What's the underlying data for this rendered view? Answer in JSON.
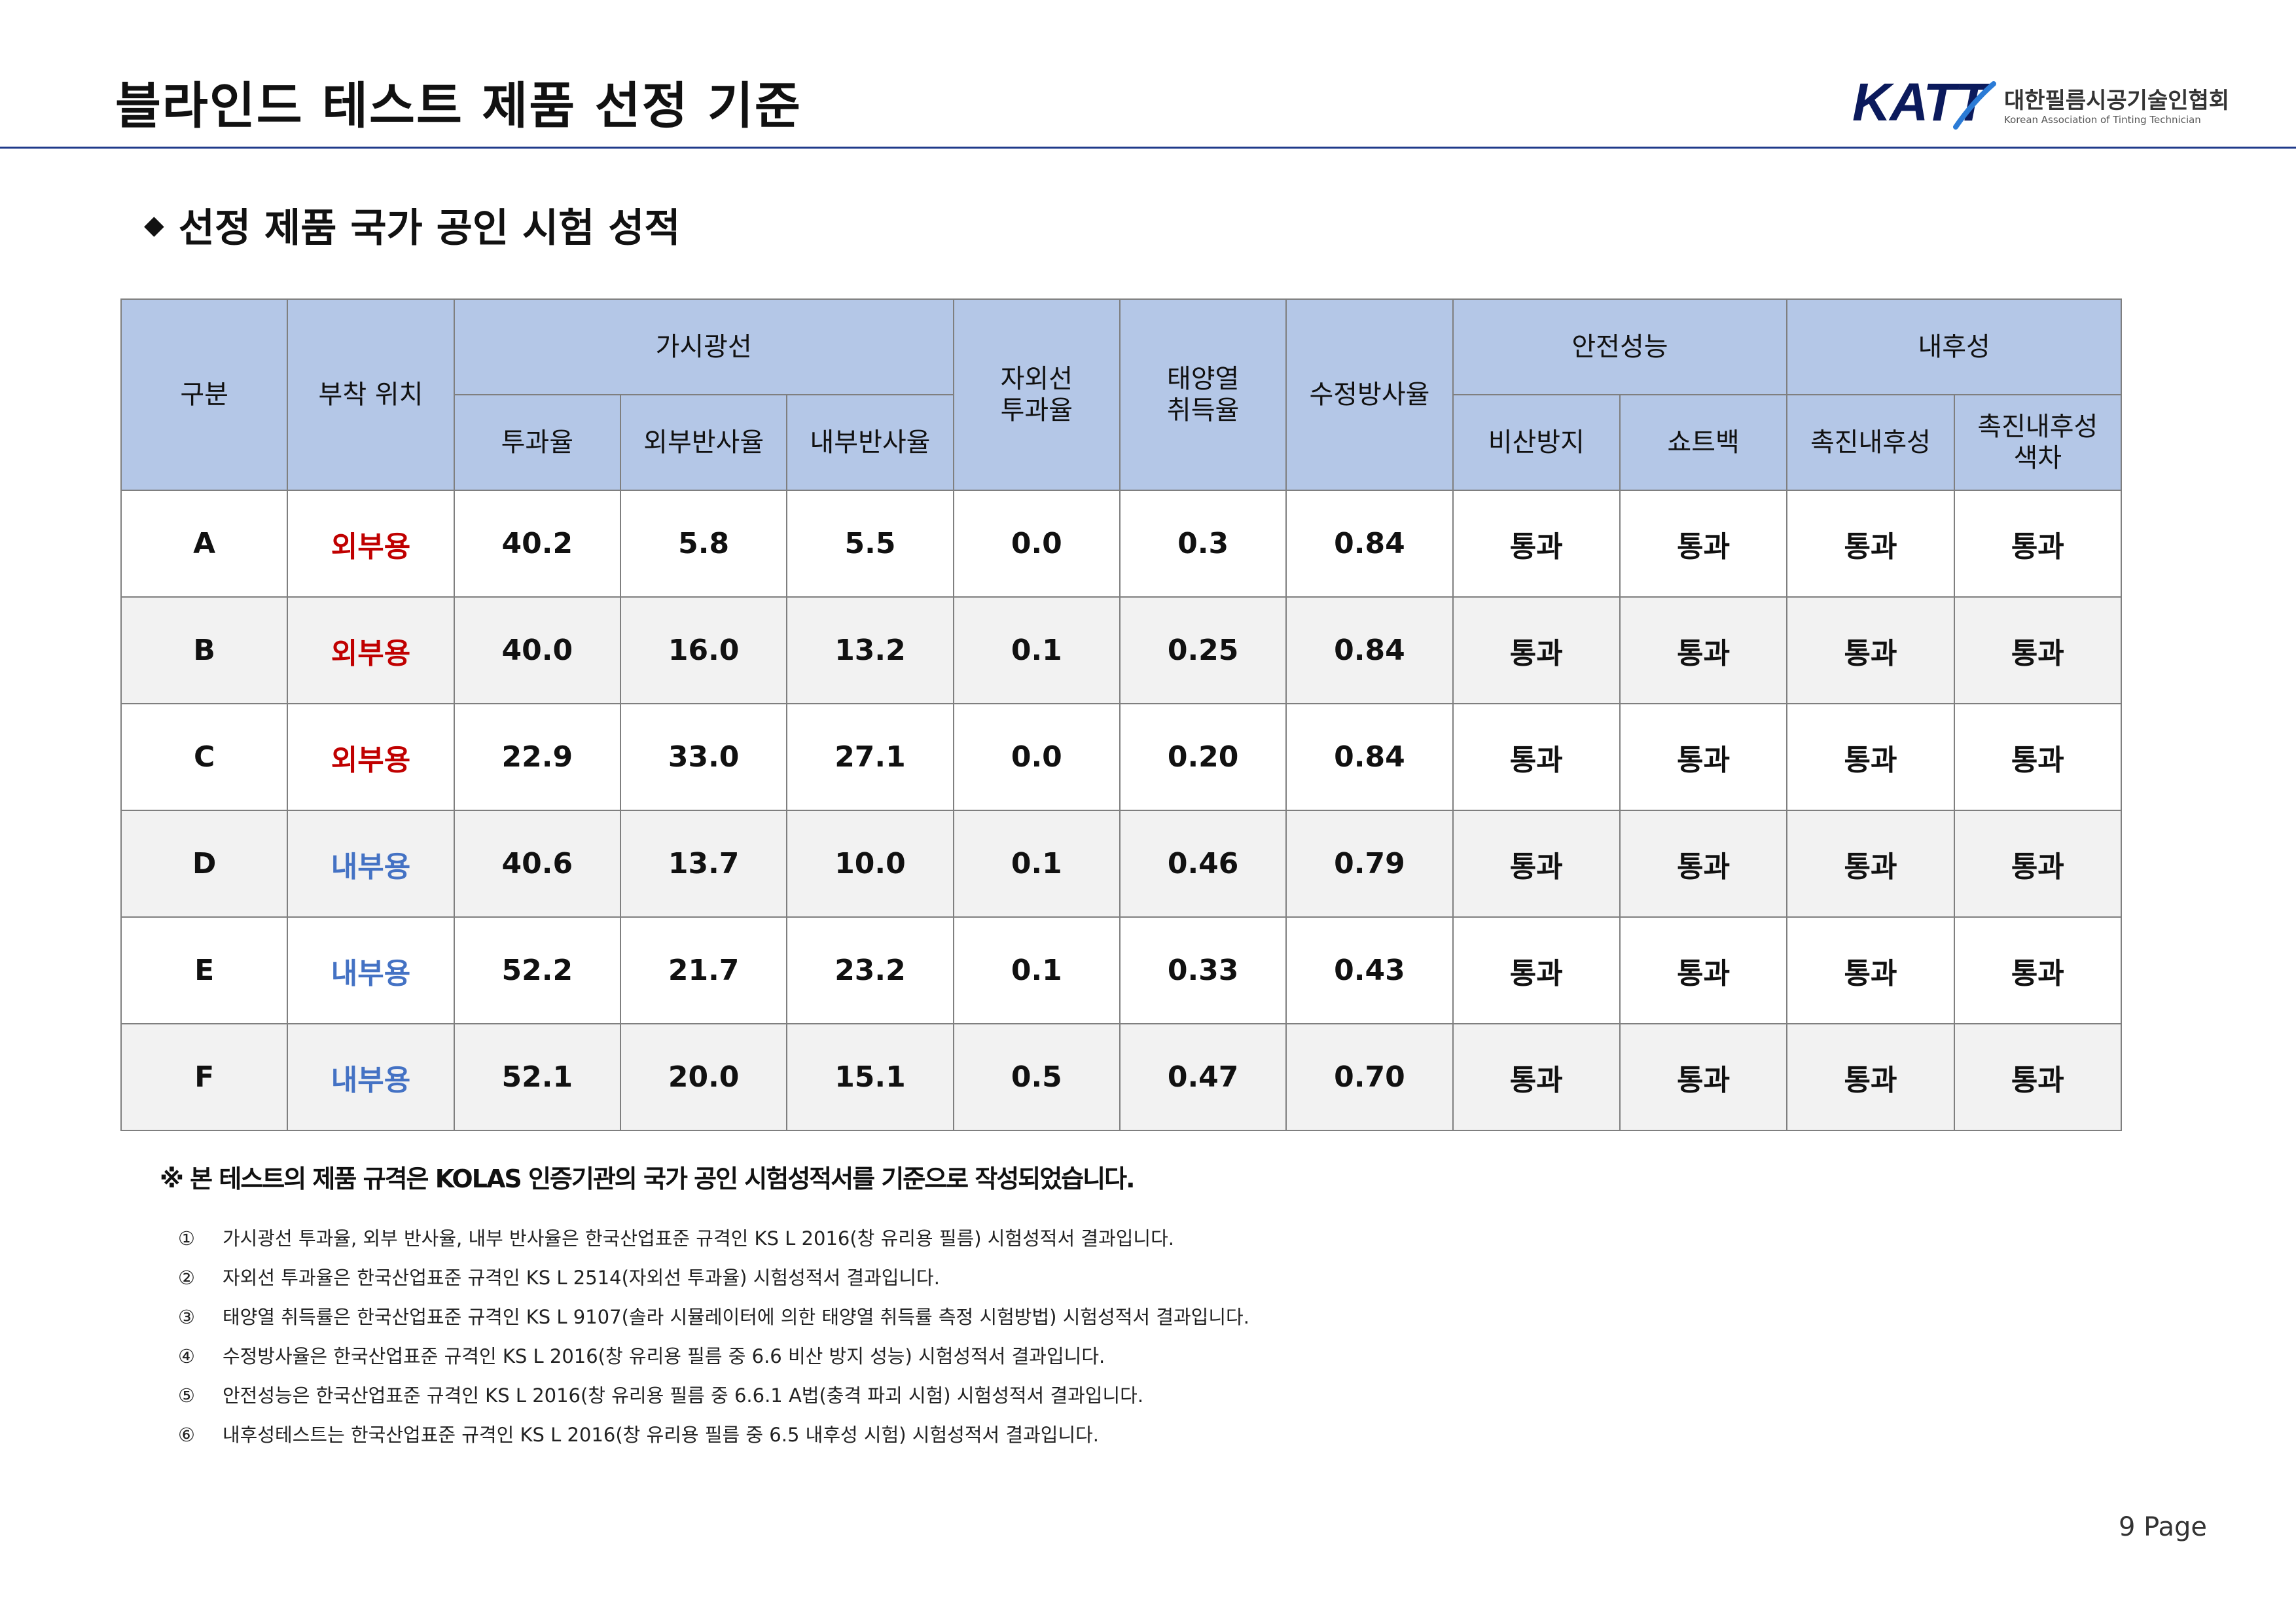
{
  "header": {
    "title": "블라인드 테스트 제품 선정 기준",
    "logo_mark": "KATT",
    "logo_korean": "대한필름시공기술인협회",
    "logo_english": "Korean Association of Tinting Technician"
  },
  "section": {
    "bullet": "◆",
    "title": "선정 제품 국가 공인 시험 성적"
  },
  "table": {
    "group_headers": {
      "category": "구분",
      "location": "부착 위치",
      "visible": "가시광선",
      "uv": "자외선\n투과율",
      "solar": "태양열\n취득율",
      "water": "수정방사율",
      "safety": "안전성능",
      "durability": "내후성"
    },
    "sub_headers": {
      "transmittance": "투과율",
      "ext_reflect": "외부반사율",
      "int_reflect": "내부반사율",
      "shatter": "비산방지",
      "shot_bag": "쇼트백",
      "accel": "촉진내후성",
      "accel_color": "촉진내후성\n색차"
    },
    "rows": [
      {
        "id": "A",
        "loc": "외부용",
        "loc_type": "ext",
        "vt": "40.2",
        "er": "5.8",
        "ir": "5.5",
        "uv": "0.0",
        "shgc": "0.3",
        "em": "0.84",
        "shatter": "통과",
        "shot": "통과",
        "accel": "통과",
        "color": "통과"
      },
      {
        "id": "B",
        "loc": "외부용",
        "loc_type": "ext",
        "vt": "40.0",
        "er": "16.0",
        "ir": "13.2",
        "uv": "0.1",
        "shgc": "0.25",
        "em": "0.84",
        "shatter": "통과",
        "shot": "통과",
        "accel": "통과",
        "color": "통과"
      },
      {
        "id": "C",
        "loc": "외부용",
        "loc_type": "ext",
        "vt": "22.9",
        "er": "33.0",
        "ir": "27.1",
        "uv": "0.0",
        "shgc": "0.20",
        "em": "0.84",
        "shatter": "통과",
        "shot": "통과",
        "accel": "통과",
        "color": "통과"
      },
      {
        "id": "D",
        "loc": "내부용",
        "loc_type": "int",
        "vt": "40.6",
        "er": "13.7",
        "ir": "10.0",
        "uv": "0.1",
        "shgc": "0.46",
        "em": "0.79",
        "shatter": "통과",
        "shot": "통과",
        "accel": "통과",
        "color": "통과"
      },
      {
        "id": "E",
        "loc": "내부용",
        "loc_type": "int",
        "vt": "52.2",
        "er": "21.7",
        "ir": "23.2",
        "uv": "0.1",
        "shgc": "0.33",
        "em": "0.43",
        "shatter": "통과",
        "shot": "통과",
        "accel": "통과",
        "color": "통과"
      },
      {
        "id": "F",
        "loc": "내부용",
        "loc_type": "int",
        "vt": "52.1",
        "er": "20.0",
        "ir": "15.1",
        "uv": "0.5",
        "shgc": "0.47",
        "em": "0.70",
        "shatter": "통과",
        "shot": "통과",
        "accel": "통과",
        "color": "통과"
      }
    ]
  },
  "notes": {
    "main": "※ 본 테스트의 제품 규격은 KOLAS 인증기관의 국가 공인 시험성적서를 기준으로 작성되었습니다.",
    "items": [
      {
        "num": "①",
        "text": "가시광선 투과율, 외부 반사율, 내부 반사율은 한국산업표준 규격인 KS L 2016(창 유리용 필름) 시험성적서 결과입니다."
      },
      {
        "num": "②",
        "text": "자외선 투과율은 한국산업표준 규격인 KS L 2514(자외선 투과율) 시험성적서 결과입니다."
      },
      {
        "num": "③",
        "text": "태양열 취득률은 한국산업표준 규격인 KS L 9107(솔라 시뮬레이터에 의한 태양열 취득률 측정 시험방법) 시험성적서 결과입니다."
      },
      {
        "num": "④",
        "text": "수정방사율은 한국산업표준 규격인 KS L 2016(창 유리용 필름 중 6.6 비산 방지 성능) 시험성적서  결과입니다."
      },
      {
        "num": "⑤",
        "text": "안전성능은 한국산업표준 규격인 KS L 2016(창 유리용 필름 중 6.6.1 A법(충격 파괴 시험) 시험성적서  결과입니다."
      },
      {
        "num": "⑥",
        "text": "내후성테스트는 한국산업표준 규격인 KS L 2016(창 유리용 필름 중 6.5 내후성 시험) 시험성적서  결과입니다."
      }
    ]
  },
  "footer": {
    "page_number": "9",
    "page_label": "Page"
  },
  "colors": {
    "header_fill": "#b4c7e7",
    "exterior": "#c00000",
    "interior": "#4472c4",
    "rule": "#1f3a8a"
  }
}
